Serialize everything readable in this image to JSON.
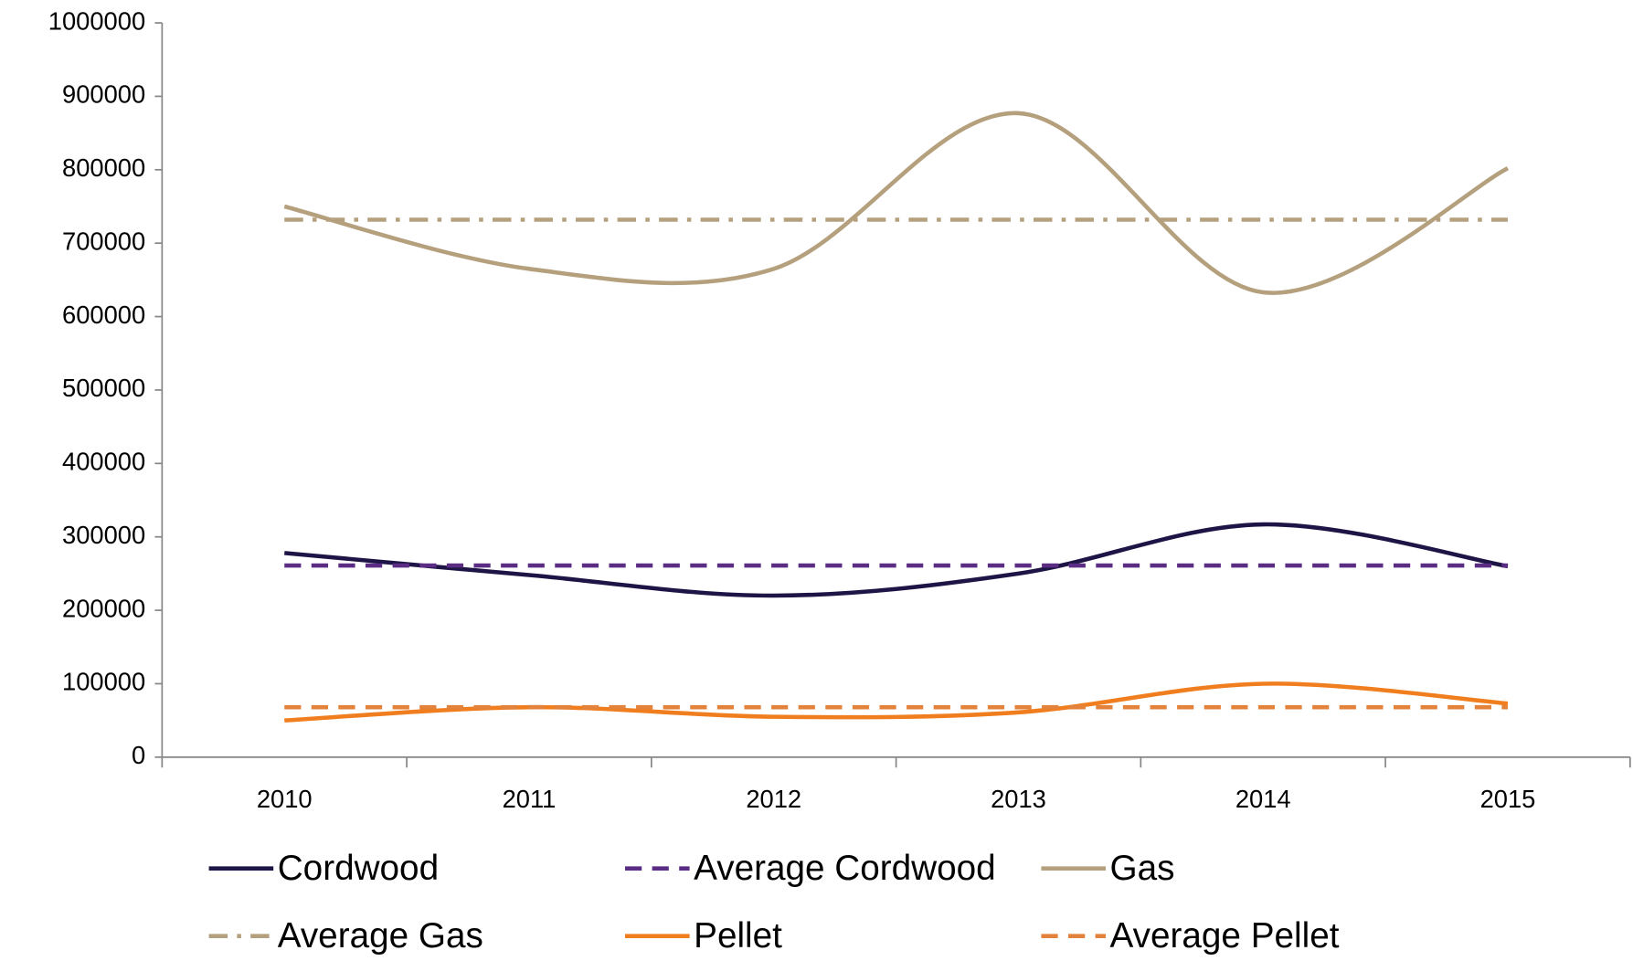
{
  "chart_data": {
    "type": "line",
    "categories": [
      "2010",
      "2011",
      "2012",
      "2013",
      "2014",
      "2015"
    ],
    "series": [
      {
        "name": "Cordwood",
        "color": "#1f1446",
        "dash": "solid",
        "values": [
          278000,
          248000,
          220000,
          250000,
          317000,
          260000
        ]
      },
      {
        "name": "Average Cordwood",
        "color": "#5b2c83",
        "dash": "dashed",
        "values": [
          261000,
          261000,
          261000,
          261000,
          261000,
          261000
        ]
      },
      {
        "name": "Gas",
        "color": "#b5a07e",
        "dash": "solid",
        "values": [
          750000,
          665000,
          665000,
          877000,
          633000,
          802000
        ]
      },
      {
        "name": "Average Gas",
        "color": "#b5a07e",
        "dash": "dashdot",
        "values": [
          732000,
          732000,
          732000,
          732000,
          732000,
          732000
        ]
      },
      {
        "name": "Pellet",
        "color": "#f07d1e",
        "dash": "solid",
        "values": [
          50000,
          68000,
          55000,
          61000,
          100000,
          73000
        ]
      },
      {
        "name": "Average Pellet",
        "color": "#e3823a",
        "dash": "dashed",
        "values": [
          68000,
          68000,
          68000,
          68000,
          68000,
          68000
        ]
      }
    ],
    "ylim": [
      0,
      1000000
    ],
    "yticks": [
      0,
      100000,
      200000,
      300000,
      400000,
      500000,
      600000,
      700000,
      800000,
      900000,
      1000000
    ],
    "smooth": true,
    "legend": "bottom"
  }
}
